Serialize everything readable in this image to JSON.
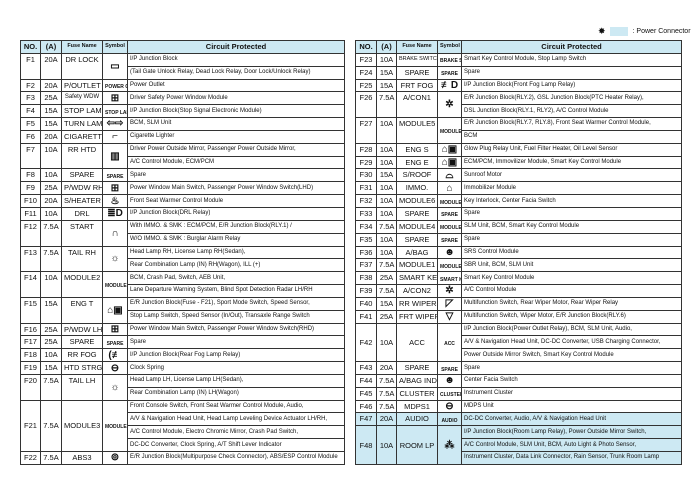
{
  "legend": {
    "icon": "power-connector-star-icon",
    "label": ": Power Connector",
    "color": "#cde9f3"
  },
  "colors": {
    "header": "#cde9f3",
    "highlight": "#cde9f3"
  },
  "headers": {
    "no": "NO.",
    "amp": "(A)",
    "name": "Fuse Name",
    "symbol": "Symbol",
    "circuit": "Circuit Protected"
  },
  "left": [
    {
      "no": "F1",
      "amp": "20A",
      "name": "DR LOCK",
      "sym": {
        "icon": "door-lock-icon",
        "glyph": "▭"
      },
      "lines": [
        "I/P Junction Block",
        "(Tail Gate Unlock Relay, Dead Lock Relay, Door Lock/Unlock Relay)"
      ]
    },
    {
      "no": "F2",
      "amp": "20A",
      "name": "P/OUTLET",
      "sym": {
        "text": "POWER OUTLET"
      },
      "lines": [
        "Power Outlet"
      ]
    },
    {
      "no": "F3",
      "amp": "25A",
      "name": "Safety WDW",
      "small": true,
      "sym": {
        "icon": "safety-window-icon",
        "glyph": "⊞"
      },
      "lines": [
        "Driver Safety Power Window Module"
      ]
    },
    {
      "no": "F4",
      "amp": "15A",
      "name": "STOP LAMP",
      "sym": {
        "text": "STOP LAMP"
      },
      "lines": [
        "I/P Junction Block(Stop Signal Electronic Module)"
      ]
    },
    {
      "no": "F5",
      "amp": "15A",
      "name": "TURN LAMP",
      "sym": {
        "icon": "turn-signal-icon",
        "glyph": "⇦⇨"
      },
      "lines": [
        "BCM, SLM Unit"
      ]
    },
    {
      "no": "F6",
      "amp": "20A",
      "name": "CIGARETTE",
      "sym": {
        "icon": "cigarette-lighter-icon",
        "glyph": "⌐"
      },
      "lines": [
        "Cigarette Lighter"
      ]
    },
    {
      "no": "F7",
      "amp": "10A",
      "name": "RR HTD",
      "sym": {
        "icon": "rear-defroster-icon",
        "glyph": "▥"
      },
      "lines": [
        "Driver Power Outside Mirror, Passenger Power Outside Mirror,",
        "A/C Control Module, ECM/PCM"
      ]
    },
    {
      "no": "F8",
      "amp": "10A",
      "name": "SPARE",
      "sym": {
        "text": "SPARE"
      },
      "lines": [
        "Spare"
      ]
    },
    {
      "no": "F9",
      "amp": "25A",
      "name": "P/WDW RH",
      "sym": {
        "icon": "power-window-icon",
        "glyph": "⊞"
      },
      "lines": [
        "Power Window Main Switch, Passenger Power Window Switch(LHD)"
      ]
    },
    {
      "no": "F10",
      "amp": "20A",
      "name": "S/HEATER",
      "sym": {
        "icon": "seat-heater-icon",
        "glyph": "♨"
      },
      "lines": [
        "Front Seat Warmer Control Module"
      ]
    },
    {
      "no": "F11",
      "amp": "10A",
      "name": "DRL",
      "sym": {
        "icon": "daytime-running-light-icon",
        "glyph": "≣D"
      },
      "lines": [
        "I/P Junction Block(DRL Relay)"
      ]
    },
    {
      "no": "F12",
      "amp": "7.5A",
      "name": "START",
      "sym": {
        "icon": "start-icon",
        "glyph": "∩"
      },
      "lines": [
        "With IMMO. & SMK : ECM/PCM, E/R Junction Block(RLY.1) /",
        "W/O IMMO. & SMK : Burglar Alarm Relay"
      ]
    },
    {
      "no": "F13",
      "amp": "7.5A",
      "name": "TAIL RH",
      "sym": {
        "icon": "tail-lamp-icon",
        "glyph": "☼"
      },
      "lines": [
        "Head Lamp RH, License Lamp RH(Sedan),",
        "Rear Combination Lamp (IN) RH(Wagon), ILL (+)"
      ]
    },
    {
      "no": "F14",
      "amp": "10A",
      "name": "MODULE2",
      "sym": {
        "text": "MODULE"
      },
      "lines": [
        "BCM, Crash Pad, Switch, AEB Unit,",
        "Lane Departure Warning System, Blind Spot Detection Radar LH/RH"
      ]
    },
    {
      "no": "F15",
      "amp": "15A",
      "name": "ENG T",
      "sym": {
        "icon": "engine-icon",
        "glyph": "⌂▣"
      },
      "lines": [
        "E/R Junction Block(Fuse - F21), Sport Mode Switch, Speed Sensor,",
        "Stop Lamp Switch, Speed Sensor (In/Out), Transaxle Range Switch"
      ]
    },
    {
      "no": "F16",
      "amp": "25A",
      "name": "P/WDW LH",
      "sym": {
        "icon": "power-window-icon",
        "glyph": "⊞"
      },
      "lines": [
        "Power Window Main Switch, Passenger Power Window Switch(RHD)"
      ]
    },
    {
      "no": "F17",
      "amp": "25A",
      "name": "SPARE",
      "sym": {
        "text": "SPARE"
      },
      "lines": [
        "Spare"
      ]
    },
    {
      "no": "F18",
      "amp": "10A",
      "name": "RR FOG",
      "sym": {
        "icon": "rear-fog-lamp-icon",
        "glyph": "(≢"
      },
      "lines": [
        "I/P Junction Block(Rear Fog Lamp Relay)"
      ]
    },
    {
      "no": "F19",
      "amp": "15A",
      "name": "HTD STRG",
      "sym": {
        "icon": "heated-steering-icon",
        "glyph": "⊖"
      },
      "lines": [
        "Clock Spring"
      ]
    },
    {
      "no": "F20",
      "amp": "7.5A",
      "name": "TAIL LH",
      "sym": {
        "icon": "tail-lamp-icon",
        "glyph": "☼"
      },
      "lines": [
        "Head Lamp LH, License Lamp LH(Sedan),",
        "Rear Combination Lamp (IN) LH(Wagon)"
      ]
    },
    {
      "no": "F21",
      "amp": "7.5A",
      "name": "MODULE3",
      "mid": true,
      "sym": {
        "text": "MODULE"
      },
      "lines": [
        "Front Console Switch, Front Seat Warmer Control Module, Audio,",
        "A/V & Navigation Head Unit, Head Lamp Leveling Device Actuator LH/RH,",
        "A/C Control Module, Electro Chromic Mirror, Crash Pad Switch,",
        "DC-DC Converter, Clock Spring, A/T Shift Lever Indicator"
      ]
    },
    {
      "no": "F22",
      "amp": "7.5A",
      "name": "ABS3",
      "sym": {
        "icon": "abs-icon",
        "glyph": "⊚"
      },
      "lines": [
        "E/R Junction Block(Multipurpose Check Connector), ABS/ESP Control Module"
      ]
    }
  ],
  "right": [
    {
      "no": "F23",
      "amp": "10A",
      "name": "BRAKE SWITCH",
      "tiny": true,
      "sym": {
        "text": "BRAKE SWITCH"
      },
      "lines": [
        "Smart Key Control Module, Stop Lamp Switch"
      ]
    },
    {
      "no": "F24",
      "amp": "15A",
      "name": "SPARE",
      "sym": {
        "text": "SPARE"
      },
      "lines": [
        "Spare"
      ]
    },
    {
      "no": "F25",
      "amp": "15A",
      "name": "FRT FOG",
      "sym": {
        "icon": "front-fog-lamp-icon",
        "glyph": "≢D"
      },
      "lines": [
        "I/P Junction Block(Front Fog Lamp Relay)"
      ]
    },
    {
      "no": "F26",
      "amp": "7.5A",
      "name": "A/CON1",
      "sym": {
        "icon": "air-conditioner-icon",
        "glyph": "✲"
      },
      "lines": [
        "E/R Junction Block(RLY.2), GSL Junction Block(PTC Heater Relay),",
        "DSL Junction Block(RLY.1, RLY2), A/C Control Module"
      ]
    },
    {
      "no": "F27",
      "amp": "10A",
      "name": "MODULE5",
      "sym": {
        "text": "MODULE"
      },
      "lines": [
        "E/R Junction Block(RLY.7, RLY.8), Front Seat Warmer Control Module,",
        "BCM"
      ]
    },
    {
      "no": "F28",
      "amp": "10A",
      "name": "ENG S",
      "sym": {
        "icon": "engine-icon",
        "glyph": "⌂▣"
      },
      "lines": [
        "Glow Plug Relay Unit, Fuel Filter Heater, Oil Level Sensor"
      ]
    },
    {
      "no": "F29",
      "amp": "10A",
      "name": "ENG E",
      "sym": {
        "icon": "engine-icon",
        "glyph": "⌂▣"
      },
      "lines": [
        "ECM/PCM, Immovilizer Module, Smart Key Control Module"
      ]
    },
    {
      "no": "F30",
      "amp": "15A",
      "name": "S/ROOF",
      "sym": {
        "icon": "sunroof-icon",
        "glyph": "⌓"
      },
      "lines": [
        "Sunroof Motor"
      ]
    },
    {
      "no": "F31",
      "amp": "10A",
      "name": "IMMO.",
      "sym": {
        "icon": "immobilizer-icon",
        "glyph": "⌂"
      },
      "lines": [
        "Immobilizer Module"
      ]
    },
    {
      "no": "F32",
      "amp": "10A",
      "name": "MODULE6",
      "sym": {
        "text": "MODULE"
      },
      "lines": [
        "Key Interlock, Center Facia Switch"
      ]
    },
    {
      "no": "F33",
      "amp": "10A",
      "name": "SPARE",
      "sym": {
        "text": "SPARE"
      },
      "lines": [
        "Spare"
      ]
    },
    {
      "no": "F34",
      "amp": "7.5A",
      "name": "MODULE4",
      "sym": {
        "text": "MODULE"
      },
      "lines": [
        "SLM Unit, BCM, Smart Key Control Module"
      ]
    },
    {
      "no": "F35",
      "amp": "10A",
      "name": "SPARE",
      "sym": {
        "text": "SPARE"
      },
      "lines": [
        "Spare"
      ]
    },
    {
      "no": "F36",
      "amp": "10A",
      "name": "A/BAG",
      "sym": {
        "icon": "airbag-icon",
        "glyph": "☻"
      },
      "lines": [
        "SRS Control Module"
      ]
    },
    {
      "no": "F37",
      "amp": "7.5A",
      "name": "MODULE1",
      "sym": {
        "text": "MODULE"
      },
      "lines": [
        "SBR Unit, BCM, SLM Unit"
      ]
    },
    {
      "no": "F38",
      "amp": "25A",
      "name": "SMART KEY",
      "sym": {
        "text": "SMART KEY"
      },
      "lines": [
        "Smart Key Control Module"
      ]
    },
    {
      "no": "F39",
      "amp": "7.5A",
      "name": "A/CON2",
      "sym": {
        "icon": "air-conditioner-icon",
        "glyph": "✲"
      },
      "lines": [
        "A/C Control Module"
      ]
    },
    {
      "no": "F40",
      "amp": "15A",
      "name": "RR WIPER",
      "sym": {
        "icon": "rear-wiper-icon",
        "glyph": "◸"
      },
      "lines": [
        "Multifunction Switch, Rear Wiper Motor, Rear Wiper Relay"
      ]
    },
    {
      "no": "F41",
      "amp": "25A",
      "name": "FRT WIPER",
      "sym": {
        "icon": "front-wiper-icon",
        "glyph": "▽"
      },
      "lines": [
        "Multifunction Switch, Wiper Motor, E/R Junction Block(RLY.6)"
      ]
    },
    {
      "no": "F42",
      "amp": "10A",
      "name": "ACC",
      "mid": true,
      "sym": {
        "text": "ACC"
      },
      "lines": [
        "I/P Junction Block(Power Outlet Relay), BCM, SLM Unit, Audio,",
        "A/V & Navigation Head Unit, DC-DC Converter, USB Charging Connector,",
        "Power Outside Mirror Switch, Smart Key Control Module"
      ]
    },
    {
      "no": "F43",
      "amp": "20A",
      "name": "SPARE",
      "sym": {
        "text": "SPARE"
      },
      "lines": [
        "Spare"
      ]
    },
    {
      "no": "F44",
      "amp": "7.5A",
      "name": "A/BAG IND",
      "sym": {
        "icon": "airbag-indicator-icon",
        "glyph": "☻"
      },
      "lines": [
        "Center Facia Switch"
      ]
    },
    {
      "no": "F45",
      "amp": "7.5A",
      "name": "CLUSTER",
      "sym": {
        "text": "CLUSTER"
      },
      "lines": [
        "Instrument Cluster"
      ]
    },
    {
      "no": "F46",
      "amp": "7.5A",
      "name": "MDPS1",
      "sym": {
        "icon": "steering-wheel-icon",
        "glyph": "⊖"
      },
      "lines": [
        "MDPS Unit"
      ]
    },
    {
      "no": "F47",
      "amp": "20A",
      "name": "AUDIO",
      "hl": true,
      "sym": {
        "text": "AUDIO"
      },
      "lines": [
        "DC-DC Converter, Audio, A/V & Navigation Head Unit"
      ]
    },
    {
      "no": "F48",
      "amp": "10A",
      "name": "ROOM LP",
      "hl": true,
      "mid": true,
      "sym": {
        "icon": "room-lamp-icon",
        "glyph": "⁂"
      },
      "lines": [
        "I/P Junction Block(Room Lamp Relay), Power Outside Mirror Switch,",
        "A/C Control Module, SLM Unit, BCM, Auto Light & Photo Sensor,",
        "Instrument Cluster, Data Link Connector, Rain Sensor, Trunk Room Lamp"
      ]
    }
  ]
}
